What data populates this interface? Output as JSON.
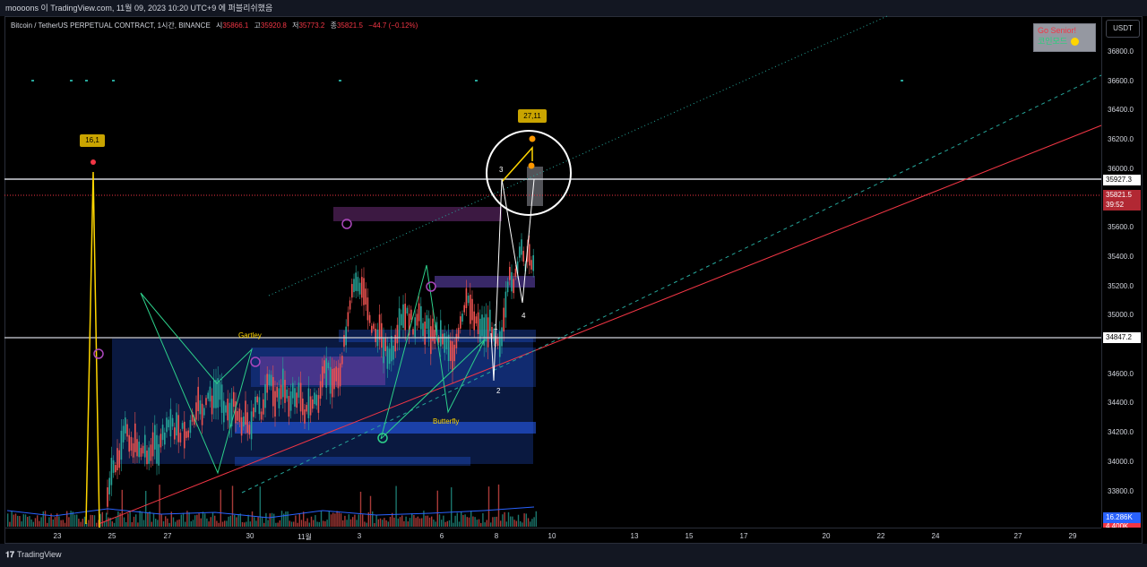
{
  "window_title": "moooons 이 TradingView.com, 11월 09, 2023 10:20 UTC+9 에 퍼블리쉬했음",
  "legend": {
    "symbol": "Bitcoin / TetherUS PERPETUAL CONTRACT, 1시간, BINANCE",
    "open_label": "시",
    "open": "35866.1",
    "high_label": "고",
    "high": "35920.8",
    "low_label": "저",
    "low": "35773.2",
    "close_label": "종",
    "close": "35821.5",
    "change": "−44.7 (−0.12%)"
  },
  "currency": "USDT",
  "price_ticks": [
    "36800.0",
    "36600.0",
    "36400.0",
    "36200.0",
    "36000.0",
    "35600.0",
    "35400.0",
    "35200.0",
    "35000.0",
    "34600.0",
    "34400.0",
    "34200.0",
    "34000.0",
    "33800.0"
  ],
  "price_labels": {
    "line_upper": "35927.3",
    "last_price": "35821.5",
    "countdown": "39:52",
    "line_lower": "34847.2",
    "volume": "16.286K",
    "volume2": "4.400K"
  },
  "time_ticks": [
    "23",
    "25",
    "27",
    "30",
    "11월",
    "3",
    "6",
    "8",
    "10",
    "13",
    "15",
    "17",
    "20",
    "22",
    "24",
    "27",
    "29"
  ],
  "widget": {
    "line1": "Go Senior!",
    "line2": "코인모드"
  },
  "annotations": {
    "chip_left": "16,1",
    "chip_right": "27,11",
    "pattern_gartley": "Gartley",
    "pattern_butterfly": "Butterfly",
    "wave_1": "1",
    "wave_2": "2",
    "wave_3": "3",
    "wave_4": "4"
  },
  "footer_logo": "TradingView",
  "colors": {
    "up": "#26a69a",
    "down": "#ef5350",
    "trend": "#f23645",
    "channel": "#26a69a",
    "pattern": "#2dcf8a",
    "accent": "#ffd600",
    "ob_blue": "#2962ff",
    "ob_pink": "#ab47bc"
  }
}
